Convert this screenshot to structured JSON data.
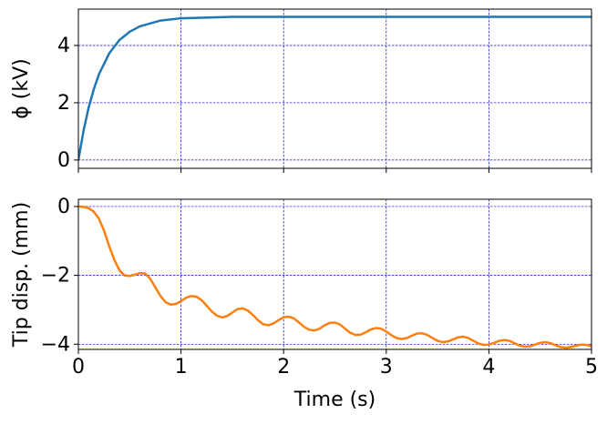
{
  "chart_data": [
    {
      "type": "line",
      "ylabel": "ϕ (kV)",
      "x": [
        0,
        0.05,
        0.1,
        0.15,
        0.2,
        0.3,
        0.4,
        0.5,
        0.6,
        0.8,
        1.0,
        1.5,
        2,
        5
      ],
      "series": [
        {
          "color": "#1f77b4",
          "values": [
            0,
            1.02,
            1.83,
            2.47,
            2.99,
            3.72,
            4.19,
            4.48,
            4.67,
            4.87,
            4.95,
            5.0,
            5.0,
            5.0
          ]
        }
      ],
      "xlim": [
        0,
        5
      ],
      "xticks": [
        0,
        1,
        2,
        3,
        4,
        5
      ],
      "ylim": [
        -0.29,
        5.27
      ],
      "yticks": [
        0,
        2,
        4
      ],
      "grid": true
    },
    {
      "type": "line",
      "xlabel": "Time (s)",
      "ylabel": "Tip disp. (mm)",
      "x": [
        0,
        0.05,
        0.1,
        0.15,
        0.2,
        0.25,
        0.3,
        0.35,
        0.4,
        0.45,
        0.5,
        0.55,
        0.6,
        0.65,
        0.7,
        0.75,
        0.8,
        0.85,
        0.9,
        0.95,
        1.0,
        1.05,
        1.1,
        1.15,
        1.2,
        1.25,
        1.3,
        1.35,
        1.4,
        1.45,
        1.5,
        1.55,
        1.6,
        1.65,
        1.7,
        1.75,
        1.8,
        1.85,
        1.9,
        1.95,
        2.0,
        2.05,
        2.1,
        2.15,
        2.2,
        2.25,
        2.3,
        2.35,
        2.4,
        2.45,
        2.5,
        2.55,
        2.6,
        2.65,
        2.7,
        2.75,
        2.8,
        2.85,
        2.9,
        2.95,
        3.0,
        3.05,
        3.1,
        3.15,
        3.2,
        3.25,
        3.3,
        3.35,
        3.4,
        3.45,
        3.5,
        3.55,
        3.6,
        3.65,
        3.7,
        3.75,
        3.8,
        3.85,
        3.9,
        3.95,
        4.0,
        4.05,
        4.1,
        4.15,
        4.2,
        4.25,
        4.3,
        4.35,
        4.4,
        4.45,
        4.5,
        4.55,
        4.6,
        4.65,
        4.7,
        4.75,
        4.8,
        4.85,
        4.9,
        4.95,
        5.0
      ],
      "series": [
        {
          "color": "#ff7f0e",
          "values": [
            0,
            -0.01,
            -0.05,
            -0.15,
            -0.35,
            -0.7,
            -1.15,
            -1.55,
            -1.85,
            -2.0,
            -2.02,
            -1.98,
            -1.93,
            -1.95,
            -2.1,
            -2.35,
            -2.6,
            -2.78,
            -2.85,
            -2.83,
            -2.75,
            -2.65,
            -2.6,
            -2.62,
            -2.72,
            -2.88,
            -3.05,
            -3.17,
            -3.22,
            -3.18,
            -3.08,
            -2.98,
            -2.96,
            -3.02,
            -3.15,
            -3.3,
            -3.42,
            -3.45,
            -3.4,
            -3.3,
            -3.22,
            -3.2,
            -3.25,
            -3.37,
            -3.5,
            -3.58,
            -3.6,
            -3.55,
            -3.45,
            -3.38,
            -3.37,
            -3.43,
            -3.55,
            -3.67,
            -3.73,
            -3.72,
            -3.65,
            -3.57,
            -3.53,
            -3.55,
            -3.63,
            -3.74,
            -3.82,
            -3.85,
            -3.82,
            -3.75,
            -3.69,
            -3.68,
            -3.73,
            -3.82,
            -3.9,
            -3.94,
            -3.92,
            -3.86,
            -3.8,
            -3.78,
            -3.82,
            -3.9,
            -3.98,
            -4.02,
            -4.01,
            -3.96,
            -3.9,
            -3.88,
            -3.9,
            -3.97,
            -4.04,
            -4.07,
            -4.06,
            -4.01,
            -3.96,
            -3.94,
            -3.97,
            -4.03,
            -4.08,
            -4.1,
            -4.08,
            -4.04,
            -4.01,
            -4.02,
            -4.06
          ]
        }
      ],
      "xlim": [
        0,
        5
      ],
      "xticks": [
        0,
        1,
        2,
        3,
        4,
        5
      ],
      "ylim": [
        -4.15,
        0.21
      ],
      "yticks": [
        {
          "value": -4,
          "label": "−4"
        },
        {
          "value": -2,
          "label": "−2"
        },
        0
      ],
      "grid": true
    }
  ]
}
